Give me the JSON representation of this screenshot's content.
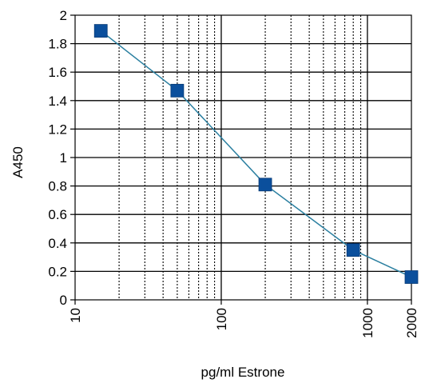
{
  "chart_data": {
    "type": "scatter",
    "title": "",
    "xlabel": "pg/ml Estrone",
    "ylabel": "A450",
    "x_scale": "log",
    "xlim": [
      10,
      2000
    ],
    "ylim": [
      0,
      2
    ],
    "grid": true,
    "legend": "none",
    "x_tick_labels": [
      "10",
      "100",
      "1000",
      "2000"
    ],
    "x_tick_values": [
      10,
      100,
      1000,
      2000
    ],
    "y_tick_labels": [
      "0",
      "0.2",
      "0.4",
      "0.6",
      "0.8",
      "1",
      "1.2",
      "1.4",
      "1.6",
      "1.8",
      "2"
    ],
    "y_tick_values": [
      0,
      0.2,
      0.4,
      0.6,
      0.8,
      1,
      1.2,
      1.4,
      1.6,
      1.8,
      2
    ],
    "series": [
      {
        "x": [
          15,
          50,
          200,
          800,
          2000
        ],
        "y": [
          1.89,
          1.47,
          0.81,
          0.35,
          0.16
        ],
        "marker": "square",
        "marker_color": "#0b4f9c",
        "line_color": "#2a7fa0"
      }
    ]
  }
}
